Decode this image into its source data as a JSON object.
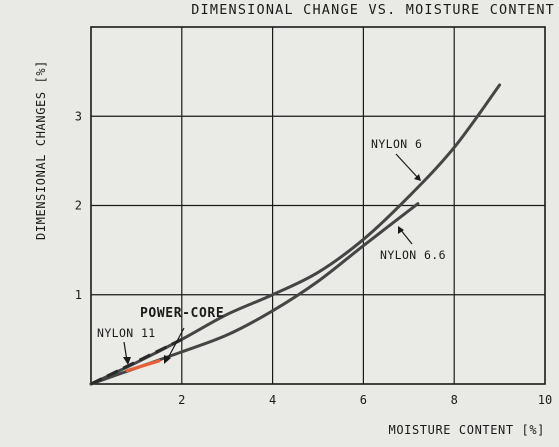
{
  "chart_data": {
    "type": "line",
    "title": "DIMENSIONAL CHANGE VS. MOISTURE CONTENT",
    "xlabel": "MOISTURE CONTENT [%]",
    "ylabel": "DIMENSIONAL CHANGES [%]",
    "xlim": [
      0,
      10
    ],
    "ylim": [
      0,
      4
    ],
    "xticks": [
      2,
      4,
      6,
      8,
      10
    ],
    "yticks": [
      1,
      2,
      3
    ],
    "grid": true,
    "series": [
      {
        "name": "NYLON 6",
        "color": "#454545",
        "x": [
          0,
          1,
          2,
          3,
          4,
          5,
          6,
          7,
          8,
          9
        ],
        "y": [
          0,
          0.24,
          0.5,
          0.78,
          1.0,
          1.25,
          1.62,
          2.1,
          2.65,
          3.35
        ]
      },
      {
        "name": "NYLON 6.6",
        "color": "#454545",
        "x": [
          0,
          1,
          2,
          3,
          4,
          5,
          6,
          7.2
        ],
        "y": [
          0,
          0.18,
          0.36,
          0.55,
          0.82,
          1.15,
          1.55,
          2.02
        ]
      },
      {
        "name": "NYLON 11",
        "color": "#2a2a2a",
        "dashed": true,
        "x": [
          0,
          2
        ],
        "y": [
          0,
          0.5
        ]
      },
      {
        "name": "POWER-CORE",
        "color": "#e8603a",
        "x": [
          0.8,
          1.5
        ],
        "y": [
          0.15,
          0.26
        ]
      }
    ]
  }
}
